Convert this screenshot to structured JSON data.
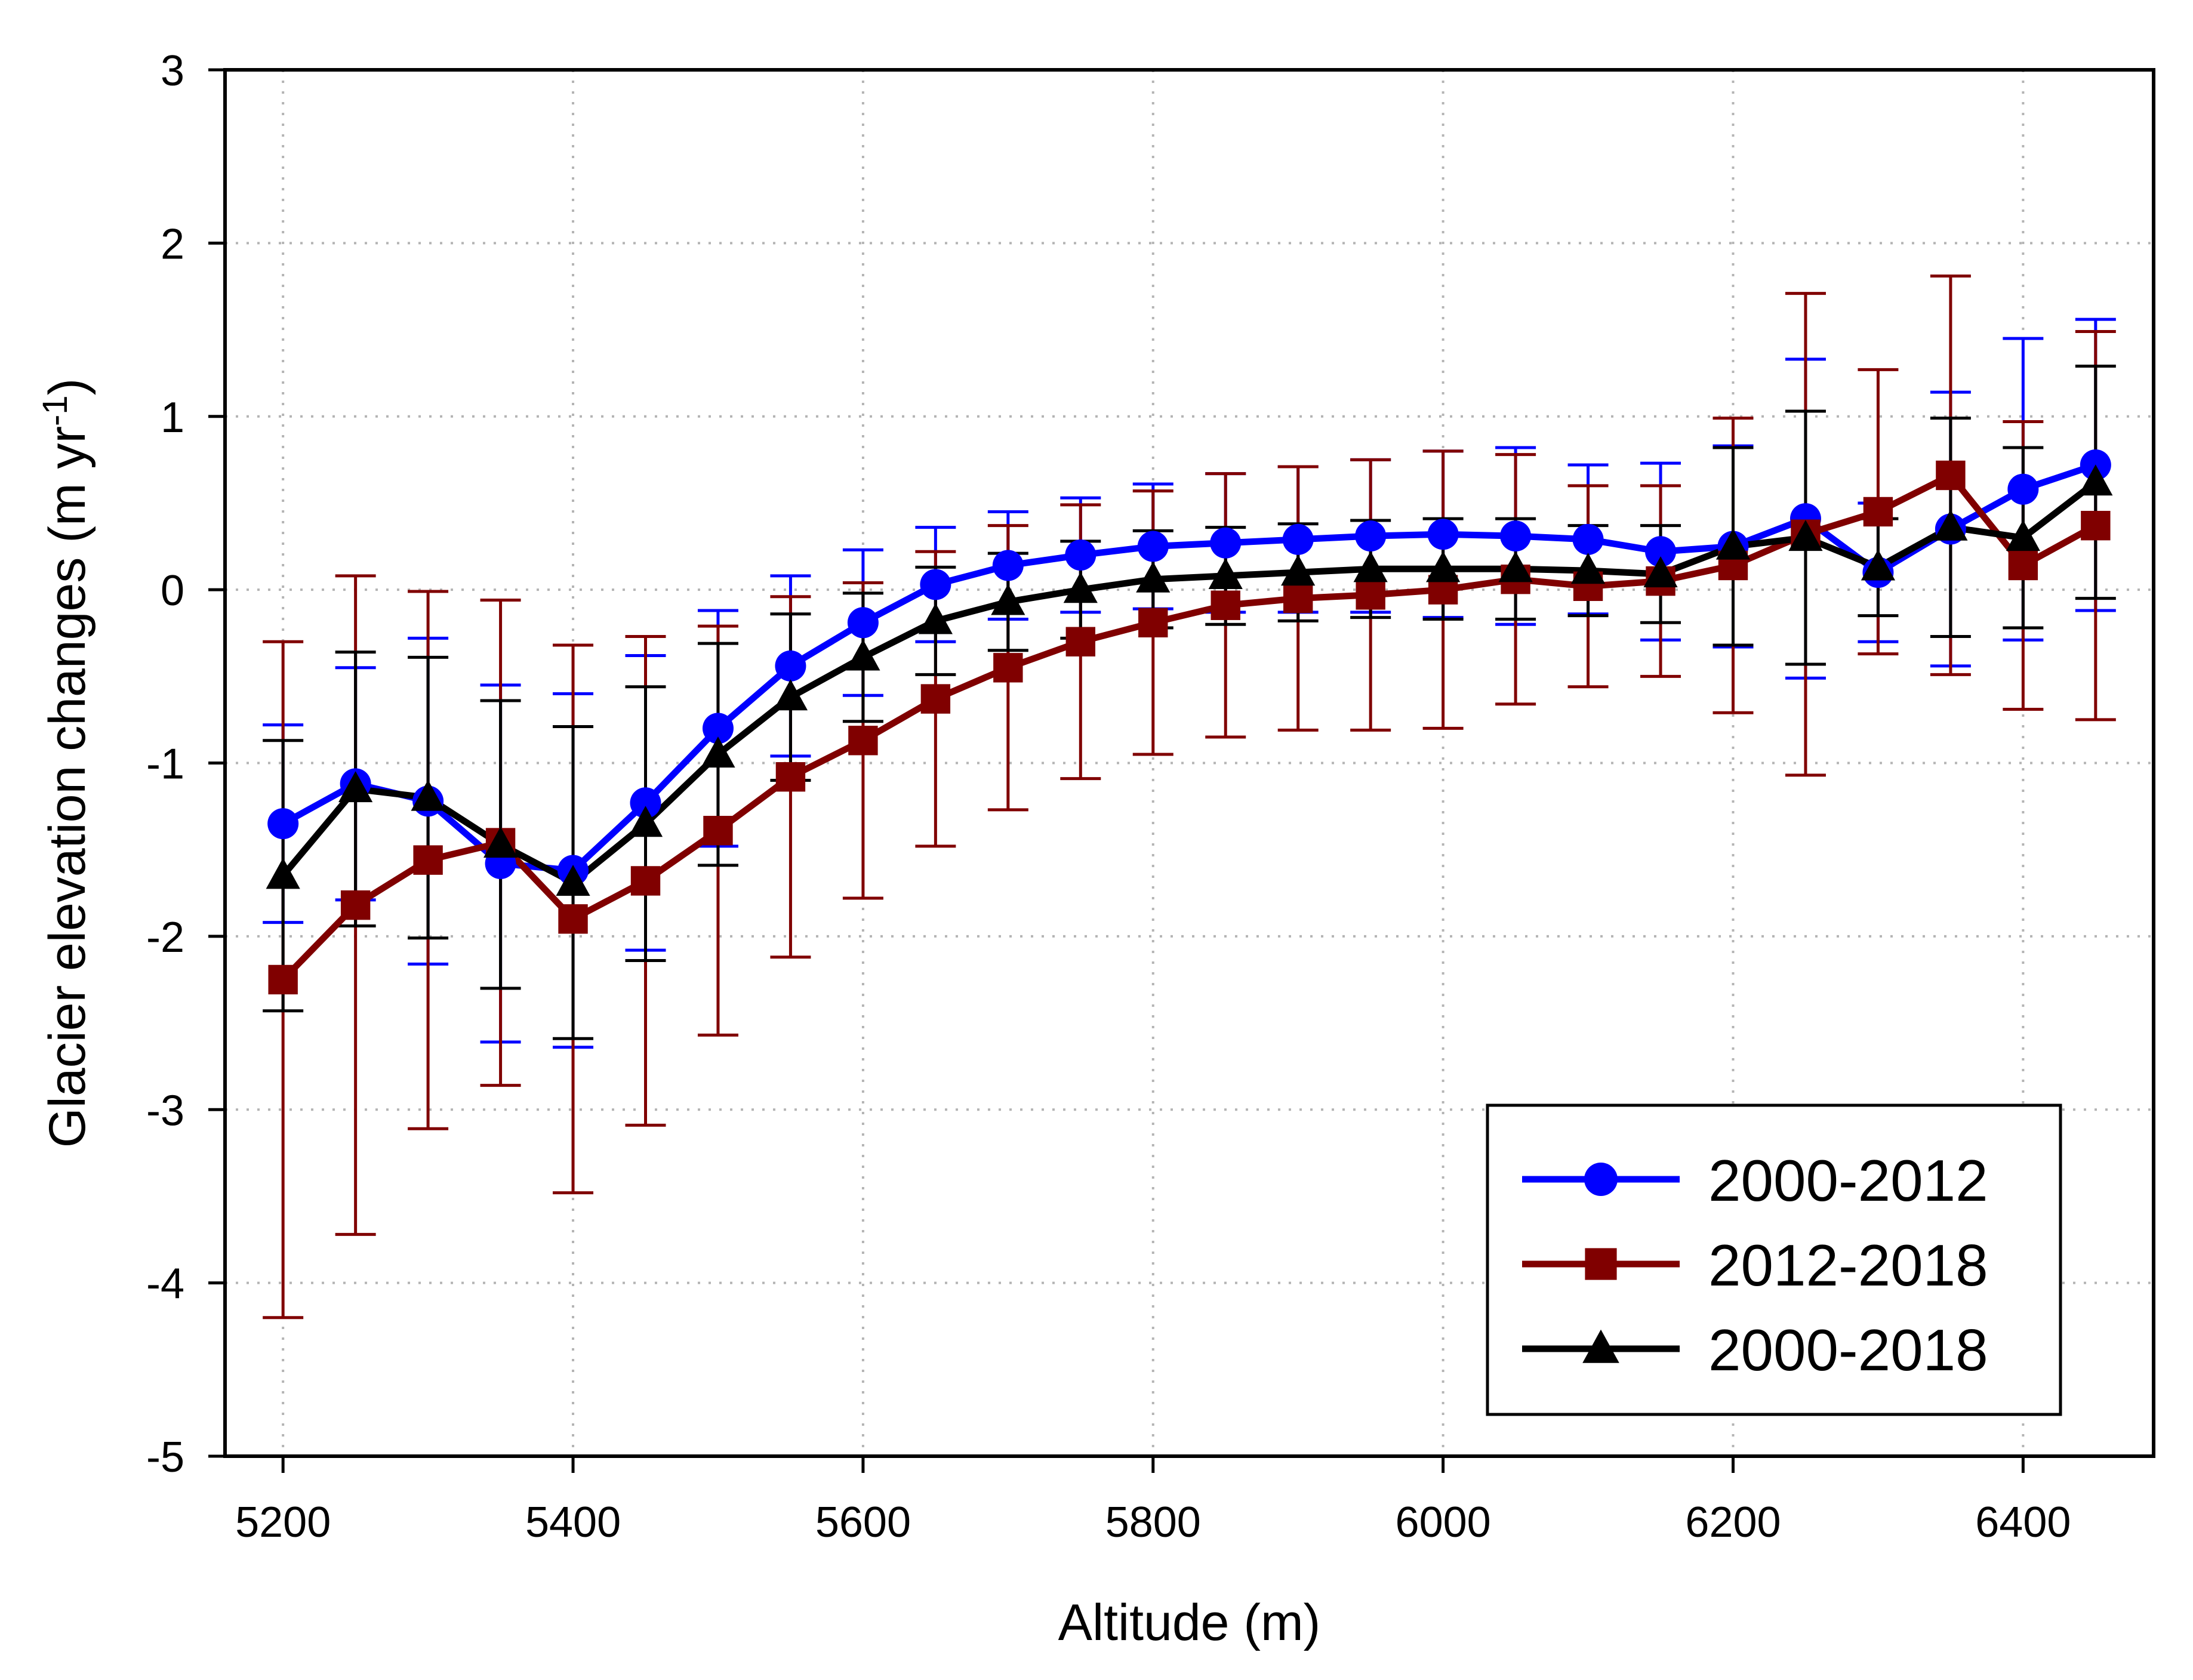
{
  "chart_data": {
    "type": "line",
    "title": "",
    "xlabel": "Altitude (m)",
    "ylabel": {
      "text": "Glacier elevation changes (m yr",
      "superscript": "-1",
      "suffix": ")"
    },
    "xlim": [
      5160,
      6490
    ],
    "ylim": [
      -5,
      3
    ],
    "xticks": [
      5200,
      5400,
      5600,
      5800,
      6000,
      6200,
      6400
    ],
    "yticks": [
      -5,
      -4,
      -3,
      -2,
      -1,
      0,
      1,
      2,
      3
    ],
    "grid": true,
    "legend_position": "bottom-right",
    "x": [
      5200,
      5250,
      5300,
      5350,
      5400,
      5450,
      5500,
      5550,
      5600,
      5650,
      5700,
      5750,
      5800,
      5850,
      5900,
      5950,
      6000,
      6050,
      6100,
      6150,
      6200,
      6250,
      6300,
      6350,
      6400,
      6450
    ],
    "series": [
      {
        "name": "2000-2012",
        "color": "#0000ff",
        "marker": "circle",
        "values": [
          -1.35,
          -1.12,
          -1.22,
          -1.58,
          -1.62,
          -1.23,
          -0.8,
          -0.44,
          -0.19,
          0.03,
          0.14,
          0.2,
          0.25,
          0.27,
          0.29,
          0.31,
          0.32,
          0.31,
          0.29,
          0.22,
          0.25,
          0.41,
          0.1,
          0.35,
          0.58,
          0.72
        ],
        "error": [
          0.57,
          0.67,
          0.94,
          1.03,
          1.02,
          0.85,
          0.68,
          0.52,
          0.42,
          0.33,
          0.31,
          0.33,
          0.36,
          0.4,
          0.42,
          0.44,
          0.48,
          0.51,
          0.43,
          0.51,
          0.58,
          0.92,
          0.4,
          0.79,
          0.87,
          0.84
        ]
      },
      {
        "name": "2012-2018",
        "color": "#800000",
        "marker": "square",
        "values": [
          -2.25,
          -1.82,
          -1.56,
          -1.46,
          -1.9,
          -1.68,
          -1.39,
          -1.08,
          -0.87,
          -0.63,
          -0.45,
          -0.3,
          -0.19,
          -0.09,
          -0.05,
          -0.03,
          0.0,
          0.06,
          0.02,
          0.05,
          0.14,
          0.32,
          0.45,
          0.66,
          0.14,
          0.37
        ],
        "error": [
          1.95,
          1.9,
          1.55,
          1.4,
          1.58,
          1.41,
          1.18,
          1.04,
          0.91,
          0.85,
          0.82,
          0.79,
          0.76,
          0.76,
          0.76,
          0.78,
          0.8,
          0.72,
          0.58,
          0.55,
          0.85,
          1.39,
          0.82,
          1.15,
          0.83,
          1.12
        ]
      },
      {
        "name": "2000-2018",
        "color": "#000000",
        "marker": "triangle",
        "values": [
          -1.65,
          -1.15,
          -1.2,
          -1.47,
          -1.69,
          -1.35,
          -0.95,
          -0.62,
          -0.39,
          -0.18,
          -0.07,
          0.0,
          0.06,
          0.08,
          0.1,
          0.12,
          0.12,
          0.12,
          0.11,
          0.09,
          0.25,
          0.3,
          0.13,
          0.36,
          0.3,
          0.62
        ],
        "error": [
          0.78,
          0.79,
          0.81,
          0.83,
          0.9,
          0.79,
          0.64,
          0.48,
          0.37,
          0.31,
          0.28,
          0.28,
          0.28,
          0.28,
          0.28,
          0.28,
          0.29,
          0.29,
          0.26,
          0.28,
          0.57,
          0.73,
          0.28,
          0.63,
          0.52,
          0.67
        ]
      }
    ]
  }
}
